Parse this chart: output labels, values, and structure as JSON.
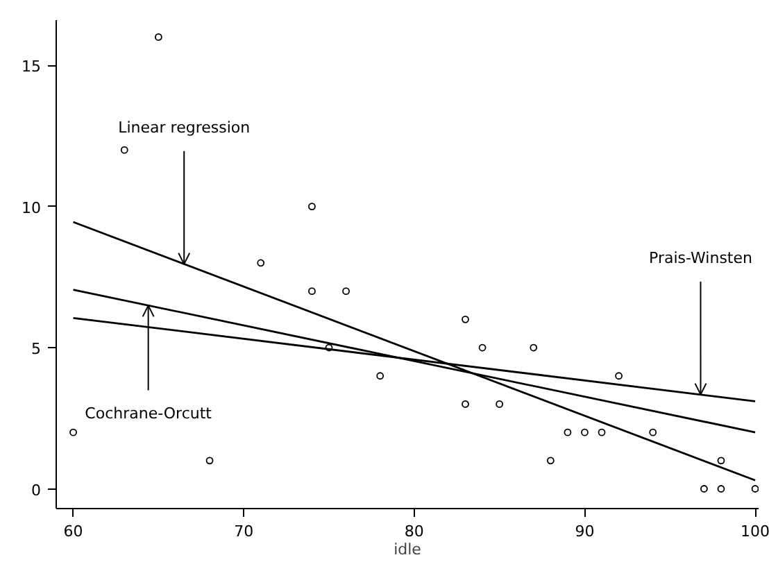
{
  "chart_data": {
    "type": "scatter",
    "xlabel": "idle",
    "xlim": [
      59,
      100.2
    ],
    "ylim": [
      -0.7,
      16.6
    ],
    "xticks": [
      60,
      70,
      80,
      90,
      100
    ],
    "yticks": [
      0,
      5,
      10,
      15
    ],
    "grid": false,
    "series": [
      {
        "color": "#000000",
        "marker": "circle",
        "x": [
          60,
          63,
          65,
          68,
          71,
          74,
          74,
          75,
          76,
          78,
          83,
          83,
          84,
          85,
          87,
          88,
          89,
          90,
          91,
          92,
          94,
          97,
          98,
          98,
          100
        ],
        "values": [
          2,
          12,
          16,
          1,
          8,
          10,
          7,
          5,
          7,
          4,
          6,
          3,
          5,
          3,
          5,
          1,
          2,
          2,
          2,
          4,
          2,
          0,
          0,
          1,
          0
        ]
      },
      {
        "type": "line",
        "color": "#000000",
        "x": [
          60,
          100
        ],
        "values": [
          9.45,
          0.3
        ]
      },
      {
        "type": "line",
        "color": "#000000",
        "x": [
          60,
          100
        ],
        "values": [
          7.05,
          2.0
        ]
      },
      {
        "type": "line",
        "color": "#000000",
        "x": [
          60,
          100
        ],
        "values": [
          6.05,
          3.1
        ]
      }
    ],
    "annotations": [
      {
        "text": "Linear regression",
        "x": 66.5,
        "y": 7.96
      },
      {
        "text": "Cochrane-Orcutt",
        "x": 64.4,
        "y": 6.49
      },
      {
        "text": "Prais-Winsten",
        "x": 96.8,
        "y": 3.34
      }
    ]
  }
}
